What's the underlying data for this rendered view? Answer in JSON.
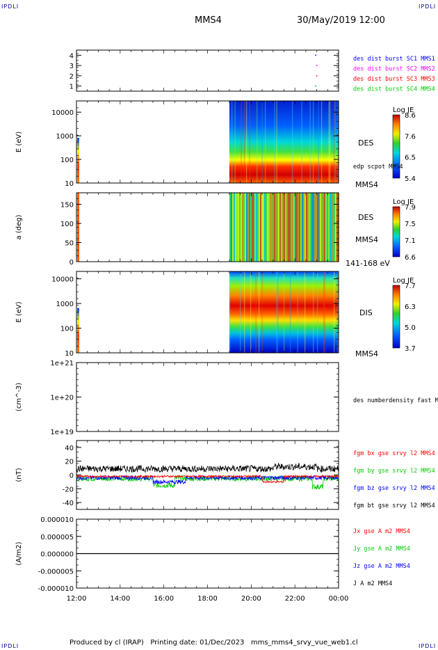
{
  "corner": {
    "tl": "IPDLI",
    "tr": "IPDLI",
    "bl": "IPDLI",
    "br": "IPDLI"
  },
  "header": {
    "spacecraft": "MMS4",
    "datetime": "30/May/2019 12:00"
  },
  "footer": "Produced by cl (IRAP)   Printing date: 01/Dec/2023   mms_mms4_srvy_vue_web1.cl",
  "colors": {
    "blue": "#0000ff",
    "magenta": "#ff00ff",
    "red": "#ff0000",
    "green": "#00cc00",
    "black": "#000000"
  },
  "chart_data": [
    {
      "panel": "availability",
      "type": "scatter",
      "ylim": [
        0.5,
        4.5
      ],
      "yticks": [
        "1",
        "2",
        "3",
        "4"
      ],
      "legend": [
        {
          "label": "des dist burst SC1 MMS1",
          "color": "#0000ff"
        },
        {
          "label": "des dist burst SC2 MMS2",
          "color": "#ff00ff"
        },
        {
          "label": "des dist burst SC3 MMS3",
          "color": "#ff0000"
        },
        {
          "label": "des dist burst SC4 MMS4",
          "color": "#00cc00"
        }
      ],
      "points": [
        {
          "x": 22.95,
          "y": 4,
          "color": "#0000ff"
        },
        {
          "x": 23.0,
          "y": 3,
          "color": "#ff00ff"
        },
        {
          "x": 23.0,
          "y": 2,
          "color": "#ff0000"
        },
        {
          "x": 22.95,
          "y": 1,
          "color": "#00cc00"
        }
      ]
    },
    {
      "panel": "des-energy",
      "type": "heatmap",
      "ylabel": "E (eV)",
      "yticks": [
        "10",
        "100",
        "1000",
        "10000"
      ],
      "label": "DES",
      "sublabel": "edp scpot MMS4",
      "bottomlabel": "MMS4",
      "colorbar": {
        "title": "Log JE",
        "ticks": [
          "8.6",
          "7.6",
          "6.5",
          "5.4"
        ]
      },
      "data_start_hour": 19.0
    },
    {
      "panel": "des-pitch",
      "type": "heatmap",
      "ylabel": "a (deg)",
      "yticks": [
        "0",
        "50",
        "100",
        "150"
      ],
      "label": "DES",
      "sublabel": "MMS4",
      "bottomlabel": "141-168 eV",
      "colorbar": {
        "title": "Log JE",
        "ticks": [
          "7.9",
          "7.5",
          "7.1",
          "6.6"
        ]
      },
      "data_start_hour": 19.0
    },
    {
      "panel": "dis-energy",
      "type": "heatmap",
      "ylabel": "E (eV)",
      "yticks": [
        "10",
        "100",
        "1000",
        "10000"
      ],
      "label": "DIS",
      "bottomlabel": "MMS4",
      "colorbar": {
        "title": "Log JE",
        "ticks": [
          "7.7",
          "6.3",
          "5.0",
          "3.7"
        ]
      },
      "data_start_hour": 19.0
    },
    {
      "panel": "density",
      "type": "line",
      "ylabel": "(cm^-3)",
      "yticks": [
        "1e+19",
        "1e+20",
        "1e+21"
      ],
      "legend": [
        {
          "label": "des numberdensity fast M",
          "color": "#000000"
        }
      ]
    },
    {
      "panel": "fgm",
      "type": "line",
      "ylabel": "(nT)",
      "ylim": [
        -50,
        50
      ],
      "yticks": [
        "-40",
        "-20",
        "0",
        "20",
        "40"
      ],
      "legend": [
        {
          "label": "fgm bx gse srvy l2 MMS4",
          "color": "#ff0000"
        },
        {
          "label": "fgm by gse srvy l2 MMS4",
          "color": "#00cc00"
        },
        {
          "label": "fgm bz gse srvy l2 MMS4",
          "color": "#0000ff"
        },
        {
          "label": "fgm bt gse srvy l2 MMS4",
          "color": "#000000"
        }
      ],
      "series_approx": {
        "bt": "~9 nT, 5 to 16 nT",
        "bx": "~ -2 nT, dips to -10 nT near 21:00",
        "by": "~ -5 nT, dips to -22 nT",
        "bz": "~ -5 nT, dips to -15 nT"
      }
    },
    {
      "panel": "current",
      "type": "line",
      "ylabel": "(A/m2)",
      "ylim": [
        -1e-05,
        1e-05
      ],
      "yticks": [
        "-0.000010",
        "-0.000005",
        "0.000000",
        "0.000005",
        "0.000010"
      ],
      "legend": [
        {
          "label": "Jx gse A m2 MMS4",
          "color": "#ff0000"
        },
        {
          "label": "Jy gse A m2 MMS4",
          "color": "#00cc00"
        },
        {
          "label": "Jz gse A m2 MMS4",
          "color": "#0000ff"
        },
        {
          "label": "J A m2 MMS4",
          "color": "#000000"
        }
      ],
      "value": 0.0
    }
  ],
  "xaxis": {
    "ticks": [
      "12:00",
      "14:00",
      "16:00",
      "18:00",
      "20:00",
      "22:00",
      "00:00"
    ],
    "start_hour": 12,
    "end_hour": 24
  }
}
